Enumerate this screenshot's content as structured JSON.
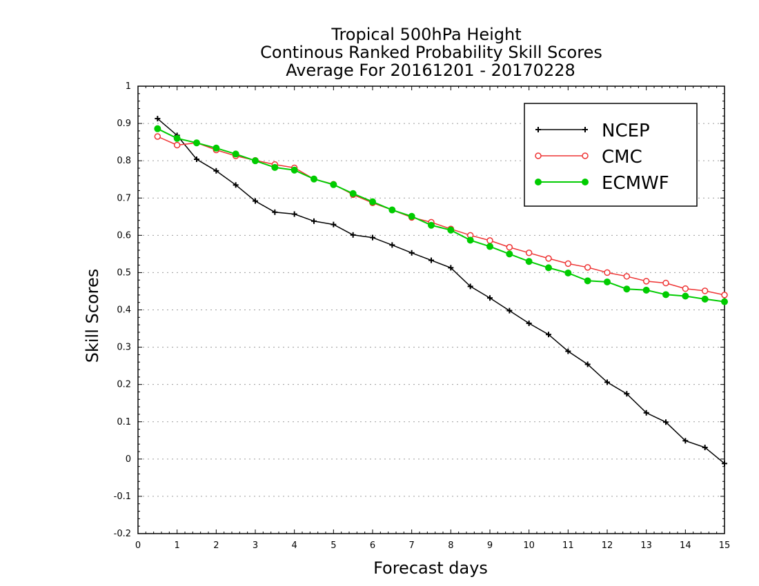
{
  "chart_data": {
    "type": "line",
    "title": [
      "Tropical 500hPa Height",
      "Continous Ranked Probability Skill Scores",
      "Average For 20161201 - 20170228"
    ],
    "xlabel": "Forecast days",
    "ylabel": "Skill Scores",
    "xlim": [
      0,
      15
    ],
    "ylim": [
      -0.2,
      1
    ],
    "xticks": [
      "0",
      "1",
      "2",
      "3",
      "4",
      "5",
      "6",
      "7",
      "8",
      "9",
      "10",
      "11",
      "12",
      "13",
      "14",
      "15"
    ],
    "yticks": [
      "-0.2",
      "-0.1",
      "0",
      "0.1",
      "0.2",
      "0.3",
      "0.4",
      "0.5",
      "0.6",
      "0.7",
      "0.8",
      "0.9",
      "1"
    ],
    "grid": "horizontal dotted",
    "legend_position": "top-right",
    "x": [
      0.5,
      1,
      1.5,
      2,
      2.5,
      3,
      3.5,
      4,
      4.5,
      5,
      5.5,
      6,
      6.5,
      7,
      7.5,
      8,
      8.5,
      9,
      9.5,
      10,
      10.5,
      11,
      11.5,
      12,
      12.5,
      13,
      13.5,
      14,
      14.5,
      15
    ],
    "series": [
      {
        "name": "NCEP",
        "color": "#000000",
        "marker": "plus",
        "values": [
          0.913,
          0.868,
          0.804,
          0.773,
          0.735,
          0.692,
          0.662,
          0.657,
          0.638,
          0.629,
          0.601,
          0.594,
          0.574,
          0.553,
          0.533,
          0.513,
          0.463,
          0.432,
          0.398,
          0.364,
          0.334,
          0.289,
          0.254,
          0.206,
          0.175,
          0.124,
          0.099,
          0.049,
          0.031,
          -0.012
        ]
      },
      {
        "name": "CMC",
        "color": "#ee3333",
        "marker": "open-circle",
        "values": [
          0.865,
          0.842,
          0.848,
          0.829,
          0.813,
          0.801,
          0.79,
          0.781,
          0.751,
          0.737,
          0.709,
          0.687,
          0.668,
          0.648,
          0.635,
          0.617,
          0.6,
          0.586,
          0.568,
          0.553,
          0.538,
          0.524,
          0.514,
          0.5,
          0.49,
          0.477,
          0.472,
          0.457,
          0.451,
          0.44
        ]
      },
      {
        "name": "ECMWF",
        "color": "#00cc00",
        "marker": "filled-circle",
        "values": [
          0.886,
          0.86,
          0.848,
          0.834,
          0.818,
          0.8,
          0.782,
          0.775,
          0.751,
          0.736,
          0.712,
          0.69,
          0.668,
          0.651,
          0.627,
          0.614,
          0.587,
          0.57,
          0.55,
          0.53,
          0.513,
          0.499,
          0.478,
          0.475,
          0.456,
          0.453,
          0.441,
          0.437,
          0.429,
          0.422
        ]
      }
    ]
  }
}
